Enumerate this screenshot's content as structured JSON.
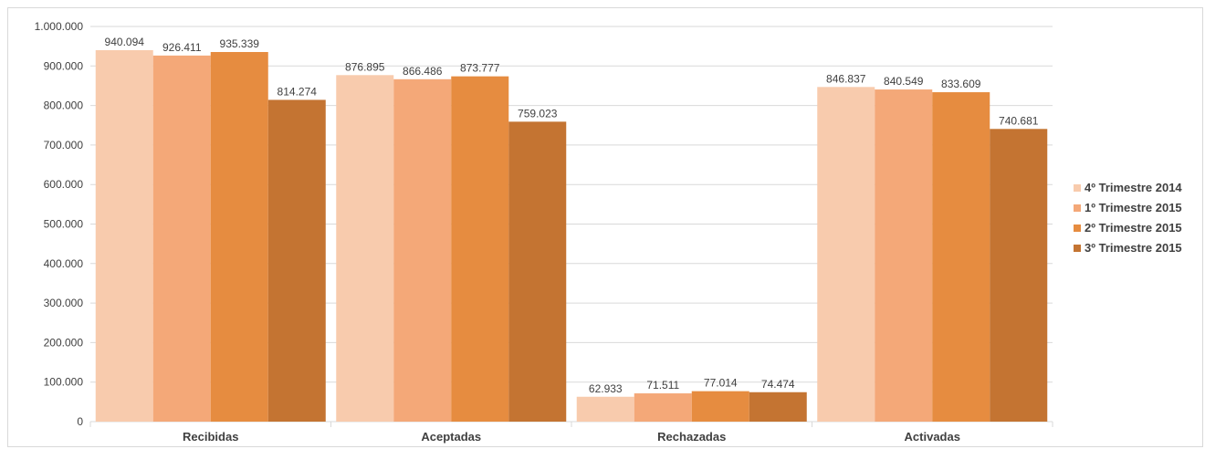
{
  "chart_data": {
    "type": "bar",
    "categories": [
      "Recibidas",
      "Aceptadas",
      "Rechazadas",
      "Activadas"
    ],
    "series": [
      {
        "name": "4º Trimestre 2014",
        "values": [
          940094,
          876895,
          62933,
          846837
        ],
        "color": "#F8CBAD"
      },
      {
        "name": "1º Trimestre 2015",
        "values": [
          926411,
          866486,
          71511,
          840549
        ],
        "color": "#F4A878"
      },
      {
        "name": "2º Trimestre 2015",
        "values": [
          935339,
          873777,
          77014,
          833609
        ],
        "color": "#E68C40"
      },
      {
        "name": "3º Trimestre 2015",
        "values": [
          814274,
          759023,
          74474,
          740681
        ],
        "color": "#C47432"
      }
    ],
    "value_labels": [
      [
        "940.094",
        "876.895",
        "62.933",
        "846.837"
      ],
      [
        "926.411",
        "866.486",
        "71.511",
        "840.549"
      ],
      [
        "935.339",
        "873.777",
        "77.014",
        "833.609"
      ],
      [
        "814.274",
        "759.023",
        "74.474",
        "740.681"
      ]
    ],
    "yticks": [
      0,
      100000,
      200000,
      300000,
      400000,
      500000,
      600000,
      700000,
      800000,
      900000,
      1000000
    ],
    "ytick_labels": [
      "0",
      "100.000",
      "200.000",
      "300.000",
      "400.000",
      "500.000",
      "600.000",
      "700.000",
      "800.000",
      "900.000",
      "1.000.000"
    ],
    "ylim": [
      0,
      1000000
    ],
    "title": "",
    "xlabel": "",
    "ylabel": "",
    "grid": true,
    "legend_position": "right",
    "gridline_color": "#d9d9d9"
  }
}
